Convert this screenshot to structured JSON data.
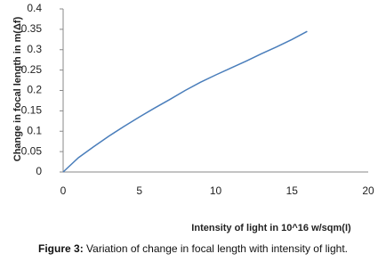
{
  "chart_data": {
    "type": "line",
    "y_label": "Change in focal length in m(Δf)",
    "x_label": "Intensity of light in 10^16 w/sqm(I)",
    "xlim": [
      0,
      20
    ],
    "xticks": [
      0,
      5,
      10,
      15,
      20
    ],
    "ylim": [
      0,
      0.4
    ],
    "yticks": [
      0,
      0.05,
      0.1,
      0.15,
      0.2,
      0.25,
      0.3,
      0.35,
      0.4
    ],
    "grid": false,
    "x": [
      0,
      1,
      2,
      3,
      4,
      5,
      6,
      7,
      8,
      9,
      10,
      11,
      12,
      13,
      14,
      15,
      16
    ],
    "series": [
      {
        "color": "#4a7ebb",
        "values": [
          0,
          0.035,
          0.062,
          0.088,
          0.112,
          0.135,
          0.157,
          0.178,
          0.2,
          0.22,
          0.238,
          0.255,
          0.272,
          0.29,
          0.307,
          0.325,
          0.345
        ]
      }
    ]
  },
  "caption": {
    "label": "Figure 3:",
    "text": "Variation of change in focal length with intensity of light."
  }
}
